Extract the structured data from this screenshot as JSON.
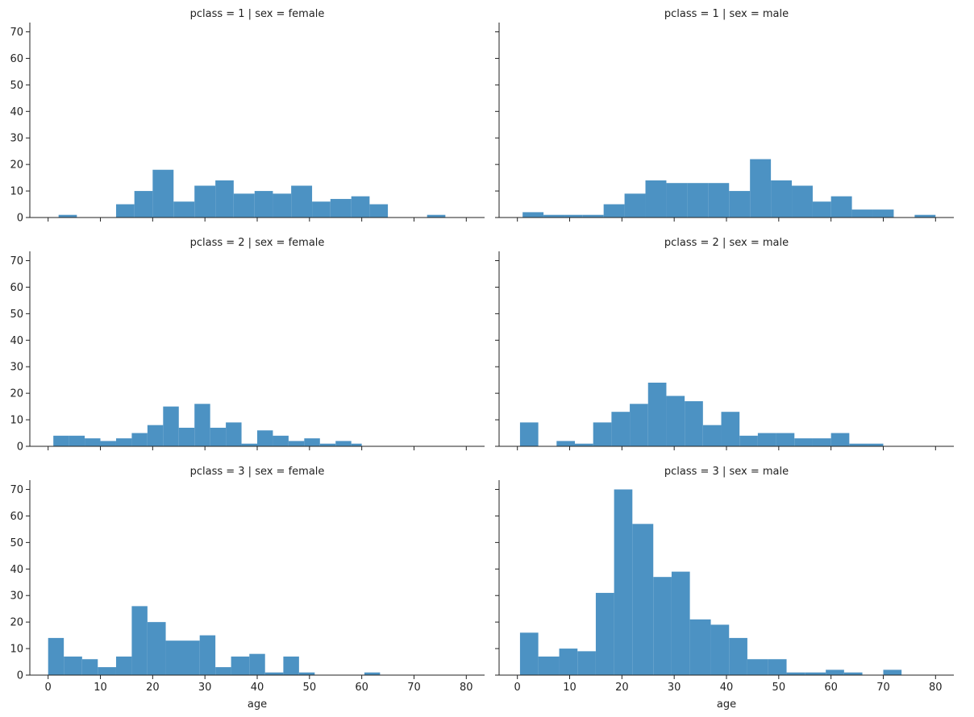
{
  "chart_data": {
    "type": "bar",
    "layout": "facet grid, 3 rows x 2 columns, shared axes",
    "xlabel": "age",
    "ylabel": "",
    "xlim": [
      -3.5,
      83.5
    ],
    "ylim": [
      0,
      73.5
    ],
    "x_ticks": [
      0,
      10,
      20,
      30,
      40,
      50,
      60,
      70,
      80
    ],
    "y_ticks": [
      0,
      10,
      20,
      30,
      40,
      50,
      60,
      70
    ],
    "grid": false,
    "bar_color": "#4C92C3",
    "panels": [
      {
        "title": "pclass = 1 | sex = female",
        "bins": [
          {
            "x0": 2,
            "x1": 5.5,
            "count": 1
          },
          {
            "x0": 13,
            "x1": 16.5,
            "count": 5
          },
          {
            "x0": 16.5,
            "x1": 20,
            "count": 10
          },
          {
            "x0": 20,
            "x1": 24,
            "count": 18
          },
          {
            "x0": 24,
            "x1": 28,
            "count": 6
          },
          {
            "x0": 28,
            "x1": 32,
            "count": 12
          },
          {
            "x0": 32,
            "x1": 35.5,
            "count": 14
          },
          {
            "x0": 35.5,
            "x1": 39.5,
            "count": 9
          },
          {
            "x0": 39.5,
            "x1": 43,
            "count": 10
          },
          {
            "x0": 43,
            "x1": 46.5,
            "count": 9
          },
          {
            "x0": 46.5,
            "x1": 50.5,
            "count": 12
          },
          {
            "x0": 50.5,
            "x1": 54,
            "count": 6
          },
          {
            "x0": 54,
            "x1": 58,
            "count": 7
          },
          {
            "x0": 58,
            "x1": 61.5,
            "count": 8
          },
          {
            "x0": 61.5,
            "x1": 65,
            "count": 5
          },
          {
            "x0": 72.5,
            "x1": 76,
            "count": 1
          }
        ]
      },
      {
        "title": "pclass = 1 | sex = male",
        "bins": [
          {
            "x0": 1,
            "x1": 5,
            "count": 2
          },
          {
            "x0": 5,
            "x1": 9,
            "count": 1
          },
          {
            "x0": 9,
            "x1": 12.5,
            "count": 1
          },
          {
            "x0": 12.5,
            "x1": 16.5,
            "count": 1
          },
          {
            "x0": 16.5,
            "x1": 20.5,
            "count": 5
          },
          {
            "x0": 20.5,
            "x1": 24.5,
            "count": 9
          },
          {
            "x0": 24.5,
            "x1": 28.5,
            "count": 14
          },
          {
            "x0": 28.5,
            "x1": 32.5,
            "count": 13
          },
          {
            "x0": 32.5,
            "x1": 36.5,
            "count": 13
          },
          {
            "x0": 36.5,
            "x1": 40.5,
            "count": 13
          },
          {
            "x0": 40.5,
            "x1": 44.5,
            "count": 10
          },
          {
            "x0": 44.5,
            "x1": 48.5,
            "count": 22
          },
          {
            "x0": 48.5,
            "x1": 52.5,
            "count": 14
          },
          {
            "x0": 52.5,
            "x1": 56.5,
            "count": 12
          },
          {
            "x0": 56.5,
            "x1": 60,
            "count": 6
          },
          {
            "x0": 60,
            "x1": 64,
            "count": 8
          },
          {
            "x0": 64,
            "x1": 68,
            "count": 3
          },
          {
            "x0": 68,
            "x1": 72,
            "count": 3
          },
          {
            "x0": 76,
            "x1": 80,
            "count": 1
          }
        ]
      },
      {
        "title": "pclass = 2 | sex = female",
        "bins": [
          {
            "x0": 1,
            "x1": 4,
            "count": 4
          },
          {
            "x0": 4,
            "x1": 7,
            "count": 4
          },
          {
            "x0": 7,
            "x1": 10,
            "count": 3
          },
          {
            "x0": 10,
            "x1": 13,
            "count": 2
          },
          {
            "x0": 13,
            "x1": 16,
            "count": 3
          },
          {
            "x0": 16,
            "x1": 19,
            "count": 5
          },
          {
            "x0": 19,
            "x1": 22,
            "count": 8
          },
          {
            "x0": 22,
            "x1": 25,
            "count": 15
          },
          {
            "x0": 25,
            "x1": 28,
            "count": 7
          },
          {
            "x0": 28,
            "x1": 31,
            "count": 16
          },
          {
            "x0": 31,
            "x1": 34,
            "count": 7
          },
          {
            "x0": 34,
            "x1": 37,
            "count": 9
          },
          {
            "x0": 37,
            "x1": 40,
            "count": 1
          },
          {
            "x0": 40,
            "x1": 43,
            "count": 6
          },
          {
            "x0": 43,
            "x1": 46,
            "count": 4
          },
          {
            "x0": 46,
            "x1": 49,
            "count": 2
          },
          {
            "x0": 49,
            "x1": 52,
            "count": 3
          },
          {
            "x0": 52,
            "x1": 55,
            "count": 1
          },
          {
            "x0": 55,
            "x1": 58,
            "count": 2
          },
          {
            "x0": 58,
            "x1": 60,
            "count": 1
          }
        ]
      },
      {
        "title": "pclass = 2 | sex = male",
        "bins": [
          {
            "x0": 0.5,
            "x1": 4,
            "count": 9
          },
          {
            "x0": 7.5,
            "x1": 11,
            "count": 2
          },
          {
            "x0": 11,
            "x1": 14.5,
            "count": 1
          },
          {
            "x0": 14.5,
            "x1": 18,
            "count": 9
          },
          {
            "x0": 18,
            "x1": 21.5,
            "count": 13
          },
          {
            "x0": 21.5,
            "x1": 25,
            "count": 16
          },
          {
            "x0": 25,
            "x1": 28.5,
            "count": 24
          },
          {
            "x0": 28.5,
            "x1": 32,
            "count": 19
          },
          {
            "x0": 32,
            "x1": 35.5,
            "count": 17
          },
          {
            "x0": 35.5,
            "x1": 39,
            "count": 8
          },
          {
            "x0": 39,
            "x1": 42.5,
            "count": 13
          },
          {
            "x0": 42.5,
            "x1": 46,
            "count": 4
          },
          {
            "x0": 46,
            "x1": 49.5,
            "count": 5
          },
          {
            "x0": 49.5,
            "x1": 53,
            "count": 5
          },
          {
            "x0": 53,
            "x1": 56.5,
            "count": 3
          },
          {
            "x0": 56.5,
            "x1": 60,
            "count": 3
          },
          {
            "x0": 60,
            "x1": 63.5,
            "count": 5
          },
          {
            "x0": 63.5,
            "x1": 67,
            "count": 1
          },
          {
            "x0": 67,
            "x1": 70,
            "count": 1
          }
        ]
      },
      {
        "title": "pclass = 3 | sex = female",
        "bins": [
          {
            "x0": 0,
            "x1": 3,
            "count": 14
          },
          {
            "x0": 3,
            "x1": 6.5,
            "count": 7
          },
          {
            "x0": 6.5,
            "x1": 9.5,
            "count": 6
          },
          {
            "x0": 9.5,
            "x1": 13,
            "count": 3
          },
          {
            "x0": 13,
            "x1": 16,
            "count": 7
          },
          {
            "x0": 16,
            "x1": 19,
            "count": 26
          },
          {
            "x0": 19,
            "x1": 22.5,
            "count": 20
          },
          {
            "x0": 22.5,
            "x1": 25.5,
            "count": 13
          },
          {
            "x0": 25.5,
            "x1": 29,
            "count": 13
          },
          {
            "x0": 29,
            "x1": 32,
            "count": 15
          },
          {
            "x0": 32,
            "x1": 35,
            "count": 3
          },
          {
            "x0": 35,
            "x1": 38.5,
            "count": 7
          },
          {
            "x0": 38.5,
            "x1": 41.5,
            "count": 8
          },
          {
            "x0": 41.5,
            "x1": 45,
            "count": 1
          },
          {
            "x0": 45,
            "x1": 48,
            "count": 7
          },
          {
            "x0": 48,
            "x1": 51,
            "count": 1
          },
          {
            "x0": 60.5,
            "x1": 63.5,
            "count": 1
          }
        ]
      },
      {
        "title": "pclass = 3 | sex = male",
        "bins": [
          {
            "x0": 0.5,
            "x1": 4,
            "count": 16
          },
          {
            "x0": 4,
            "x1": 8,
            "count": 7
          },
          {
            "x0": 8,
            "x1": 11.5,
            "count": 10
          },
          {
            "x0": 11.5,
            "x1": 15,
            "count": 9
          },
          {
            "x0": 15,
            "x1": 18.5,
            "count": 31
          },
          {
            "x0": 18.5,
            "x1": 22,
            "count": 70
          },
          {
            "x0": 22,
            "x1": 26,
            "count": 57
          },
          {
            "x0": 26,
            "x1": 29.5,
            "count": 37
          },
          {
            "x0": 29.5,
            "x1": 33,
            "count": 39
          },
          {
            "x0": 33,
            "x1": 37,
            "count": 21
          },
          {
            "x0": 37,
            "x1": 40.5,
            "count": 19
          },
          {
            "x0": 40.5,
            "x1": 44,
            "count": 14
          },
          {
            "x0": 44,
            "x1": 48,
            "count": 6
          },
          {
            "x0": 48,
            "x1": 51.5,
            "count": 6
          },
          {
            "x0": 51.5,
            "x1": 55,
            "count": 1
          },
          {
            "x0": 55,
            "x1": 59,
            "count": 1
          },
          {
            "x0": 59,
            "x1": 62.5,
            "count": 2
          },
          {
            "x0": 62.5,
            "x1": 66,
            "count": 1
          },
          {
            "x0": 70,
            "x1": 73.5,
            "count": 2
          }
        ]
      }
    ]
  }
}
